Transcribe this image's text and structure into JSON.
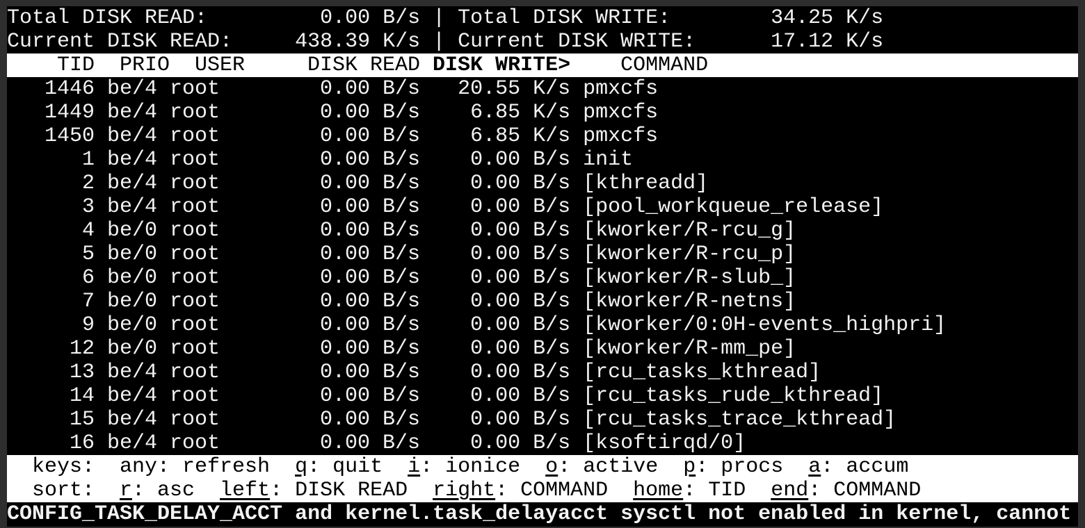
{
  "summary": {
    "total_read_label": "Total DISK READ:",
    "total_read": "0.00 B/s",
    "total_write_label": "Total DISK WRITE:",
    "total_write": "34.25 K/s",
    "current_read_label": "Current DISK READ:",
    "current_read": "438.39 K/s",
    "current_write_label": "Current DISK WRITE:",
    "current_write": "17.12 K/s",
    "separator": "|"
  },
  "columns": {
    "tid": "TID",
    "prio": "PRIO",
    "user": "USER",
    "read": "DISK READ",
    "write": "DISK WRITE>",
    "command": "COMMAND"
  },
  "rows": [
    {
      "tid": "1446",
      "prio": "be/4",
      "user": "root",
      "read": "0.00 B/s",
      "write": "20.55 K/s",
      "command": "pmxcfs"
    },
    {
      "tid": "1449",
      "prio": "be/4",
      "user": "root",
      "read": "0.00 B/s",
      "write": "6.85 K/s",
      "command": "pmxcfs"
    },
    {
      "tid": "1450",
      "prio": "be/4",
      "user": "root",
      "read": "0.00 B/s",
      "write": "6.85 K/s",
      "command": "pmxcfs"
    },
    {
      "tid": "1",
      "prio": "be/4",
      "user": "root",
      "read": "0.00 B/s",
      "write": "0.00 B/s",
      "command": "init"
    },
    {
      "tid": "2",
      "prio": "be/4",
      "user": "root",
      "read": "0.00 B/s",
      "write": "0.00 B/s",
      "command": "[kthreadd]"
    },
    {
      "tid": "3",
      "prio": "be/4",
      "user": "root",
      "read": "0.00 B/s",
      "write": "0.00 B/s",
      "command": "[pool_workqueue_release]"
    },
    {
      "tid": "4",
      "prio": "be/0",
      "user": "root",
      "read": "0.00 B/s",
      "write": "0.00 B/s",
      "command": "[kworker/R-rcu_g]"
    },
    {
      "tid": "5",
      "prio": "be/0",
      "user": "root",
      "read": "0.00 B/s",
      "write": "0.00 B/s",
      "command": "[kworker/R-rcu_p]"
    },
    {
      "tid": "6",
      "prio": "be/0",
      "user": "root",
      "read": "0.00 B/s",
      "write": "0.00 B/s",
      "command": "[kworker/R-slub_]"
    },
    {
      "tid": "7",
      "prio": "be/0",
      "user": "root",
      "read": "0.00 B/s",
      "write": "0.00 B/s",
      "command": "[kworker/R-netns]"
    },
    {
      "tid": "9",
      "prio": "be/0",
      "user": "root",
      "read": "0.00 B/s",
      "write": "0.00 B/s",
      "command": "[kworker/0:0H-events_highpri]"
    },
    {
      "tid": "12",
      "prio": "be/0",
      "user": "root",
      "read": "0.00 B/s",
      "write": "0.00 B/s",
      "command": "[kworker/R-mm_pe]"
    },
    {
      "tid": "13",
      "prio": "be/4",
      "user": "root",
      "read": "0.00 B/s",
      "write": "0.00 B/s",
      "command": "[rcu_tasks_kthread]"
    },
    {
      "tid": "14",
      "prio": "be/4",
      "user": "root",
      "read": "0.00 B/s",
      "write": "0.00 B/s",
      "command": "[rcu_tasks_rude_kthread]"
    },
    {
      "tid": "15",
      "prio": "be/4",
      "user": "root",
      "read": "0.00 B/s",
      "write": "0.00 B/s",
      "command": "[rcu_tasks_trace_kthread]"
    },
    {
      "tid": "16",
      "prio": "be/4",
      "user": "root",
      "read": "0.00 B/s",
      "write": "0.00 B/s",
      "command": "[ksoftirqd/0]"
    }
  ],
  "help": {
    "keys_label": "keys:",
    "keys": [
      {
        "key": "any",
        "label": "refresh",
        "underline": false
      },
      {
        "key": "q",
        "label": "quit",
        "underline": true
      },
      {
        "key": "i",
        "label": "ionice",
        "underline": true
      },
      {
        "key": "o",
        "label": "active",
        "underline": true
      },
      {
        "key": "p",
        "label": "procs",
        "underline": true
      },
      {
        "key": "a",
        "label": "accum",
        "underline": true
      }
    ],
    "sort_label": "sort:",
    "sort": [
      {
        "key": "r",
        "label": "asc",
        "underline": true
      },
      {
        "key": "left",
        "label": "DISK READ",
        "underline": true
      },
      {
        "key": "right",
        "label": "COMMAND",
        "underline": true
      },
      {
        "key": "home",
        "label": "TID",
        "underline": true
      },
      {
        "key": "end",
        "label": "COMMAND",
        "underline": true
      }
    ]
  },
  "warning": "CONFIG_TASK_DELAY_ACCT and kernel.task_delayacct sysctl not enabled in kernel, cannot",
  "colors": {
    "background": "#000000",
    "foreground": "#f2f2f2",
    "inverse_bar": "#ffffff"
  }
}
